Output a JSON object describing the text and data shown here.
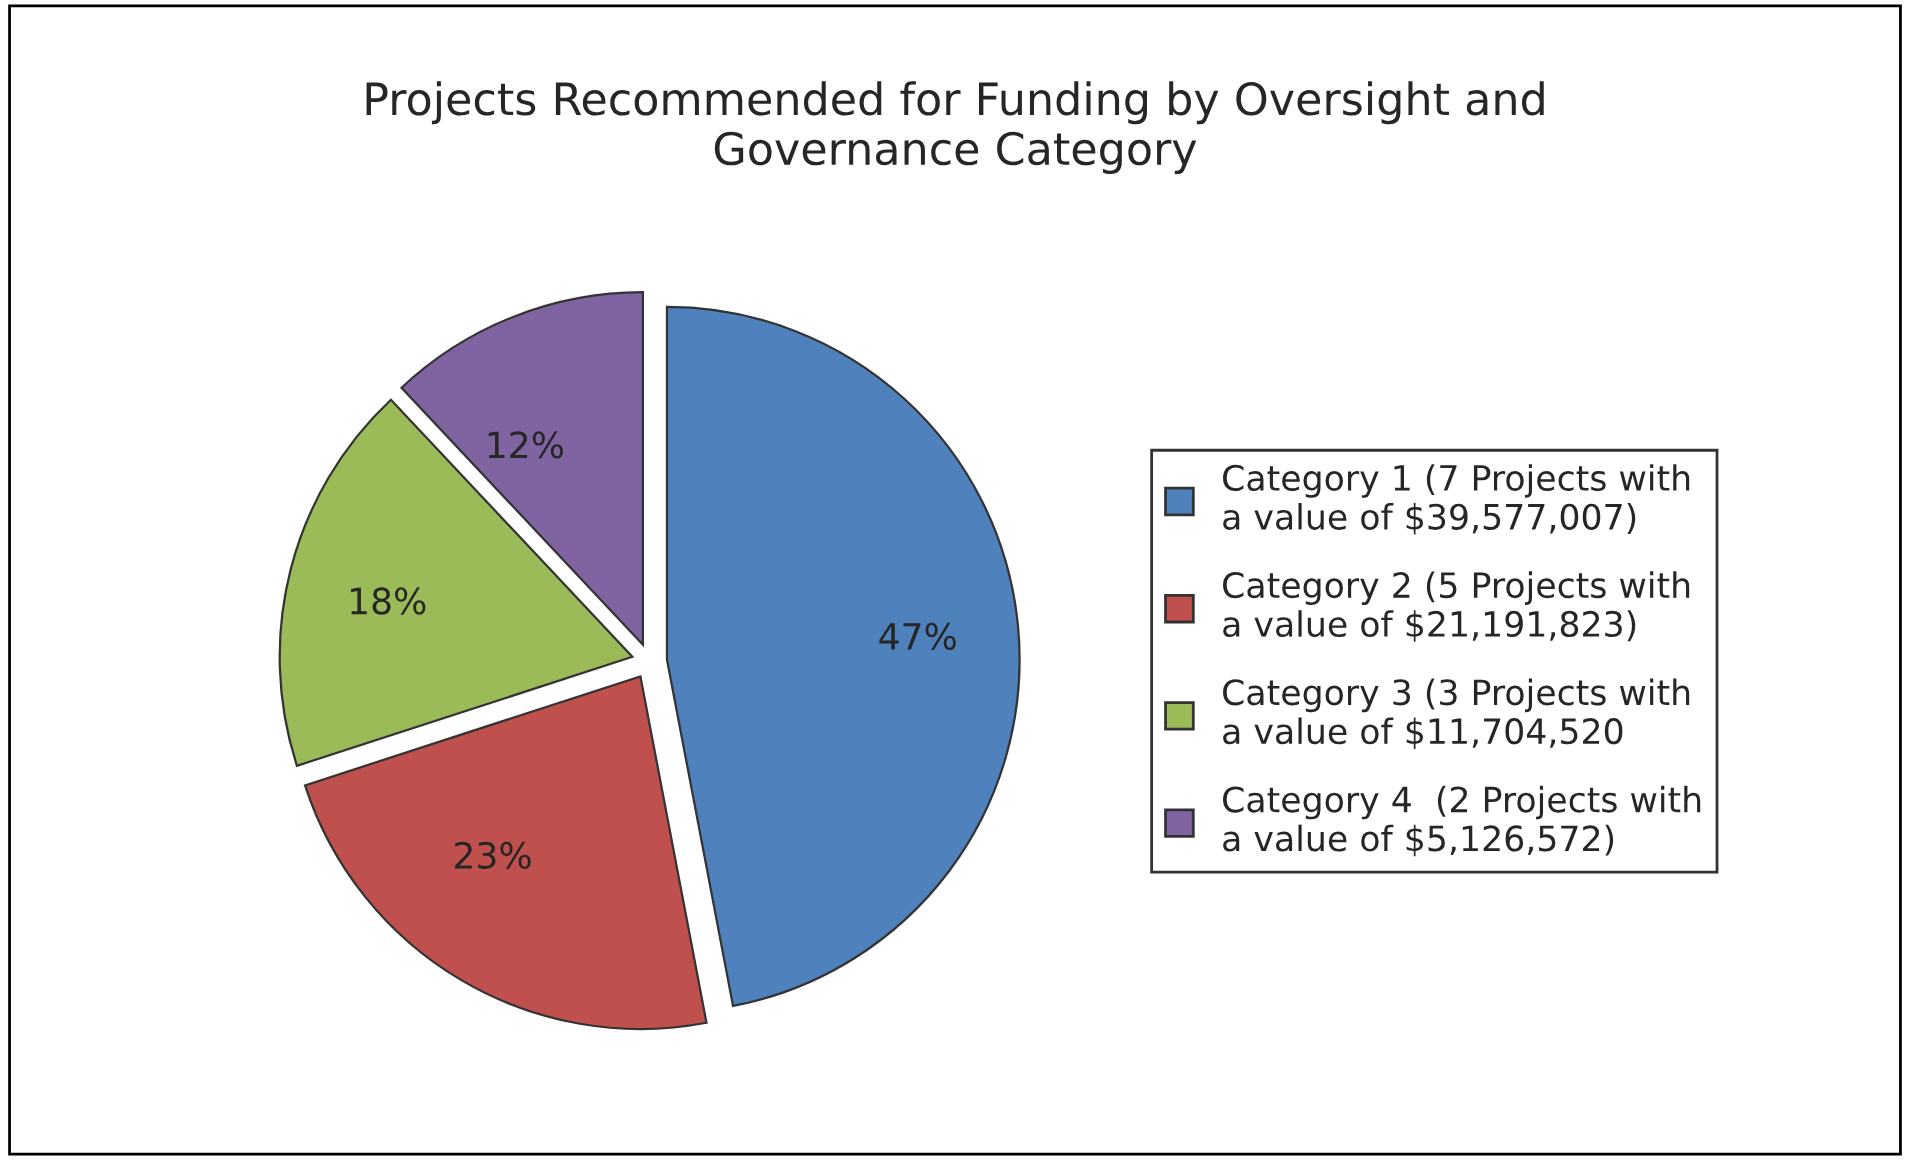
{
  "chart_data": {
    "type": "pie",
    "title": "Projects Recommended for Funding by Oversight and\nGovernance Category",
    "categories": [
      "Category 1 (7 Projects with\na value of $39,577,007)",
      "Category 2 (5 Projects with\na value of $21,191,823)",
      "Category 3 (3 Projects with\na value of $11,704,520",
      "Category 4  (2 Projects with\na value of $5,126,572)"
    ],
    "values": [
      47,
      23,
      18,
      12
    ],
    "colors": [
      "#4f81bd",
      "#c0504d",
      "#9bbb59",
      "#8064a2"
    ],
    "value_labels": [
      "47%",
      "23%",
      "18%",
      "12%"
    ],
    "legend": "right"
  }
}
